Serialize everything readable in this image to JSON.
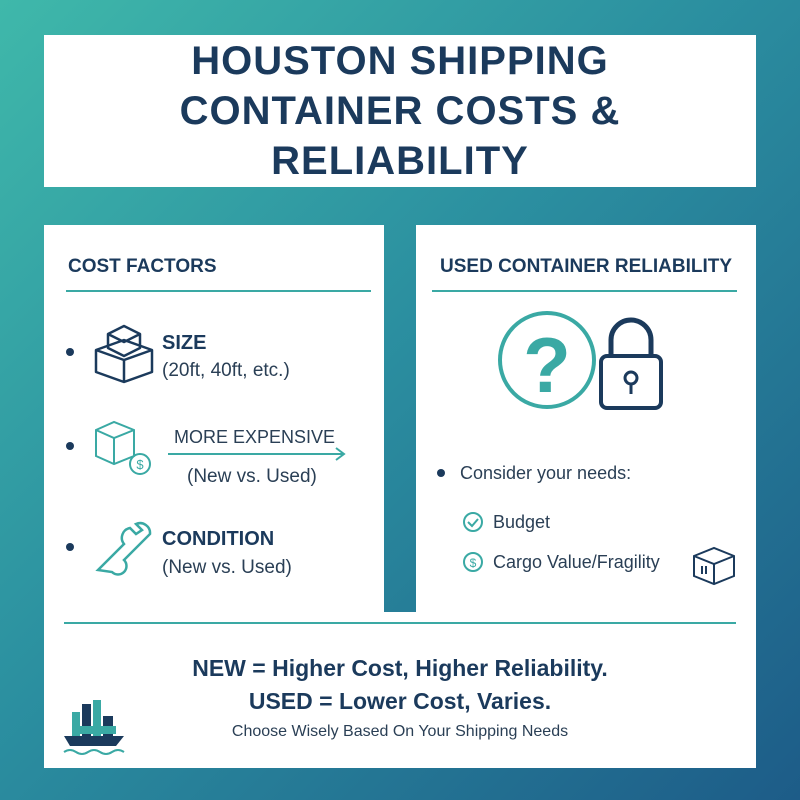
{
  "header": {
    "title": "HOUSTON SHIPPING CONTAINER COSTS & RELIABILITY"
  },
  "cost_factors": {
    "heading": "COST FACTORS",
    "items": [
      {
        "title": "SIZE",
        "detail": "(20ft, 40ft, etc.)"
      },
      {
        "title": "MORE EXPENSIVE",
        "detail": "(New vs. Used)"
      },
      {
        "title": "CONDITION",
        "detail": "(New vs. Used)"
      }
    ]
  },
  "reliability": {
    "heading": "USED CONTAINER RELIABILITY",
    "prompt": "Consider your needs:",
    "needs": [
      "Budget",
      "Cargo Value/Fragility"
    ]
  },
  "footer": {
    "line1": "NEW = Higher Cost, Higher Reliability.",
    "line2": "USED = Lower Cost, Varies.",
    "tagline": "Choose Wisely Based On Your Shipping Needs"
  }
}
